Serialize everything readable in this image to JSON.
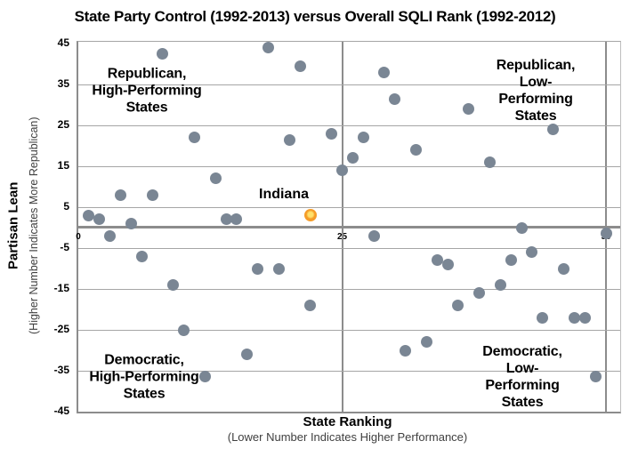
{
  "chart_data": {
    "type": "scatter",
    "title": "State Party Control (1992-2013) versus Overall SQLI Rank (1992-2012)",
    "xlabel": "State Ranking",
    "xlabel_sub": "(Lower Number Indicates Higher Performance)",
    "ylabel": "Partisan Lean",
    "ylabel_sub": "(Higher Number Indicates More Republican)",
    "xlim": [
      0,
      51
    ],
    "ylim": [
      -45,
      45
    ],
    "xticks": [
      0,
      25,
      50
    ],
    "yticks": [
      45,
      35,
      25,
      15,
      5,
      -5,
      -15,
      -25,
      -35,
      -45
    ],
    "grid": true,
    "legend_position": "none",
    "series": [
      {
        "name": "States",
        "color": "#7A8694",
        "points": [
          [
            8,
            42.5
          ],
          [
            18,
            44
          ],
          [
            21,
            39.5
          ],
          [
            11,
            22
          ],
          [
            20,
            21.5
          ],
          [
            24,
            23
          ],
          [
            25,
            14
          ],
          [
            13,
            12
          ],
          [
            4,
            8
          ],
          [
            7,
            8
          ],
          [
            1,
            3
          ],
          [
            2,
            2
          ],
          [
            5,
            1
          ],
          [
            14,
            2
          ],
          [
            15,
            2
          ],
          [
            3,
            -2
          ],
          [
            29,
            38
          ],
          [
            30,
            31.5
          ],
          [
            37,
            29
          ],
          [
            27,
            22
          ],
          [
            32,
            19
          ],
          [
            26,
            17
          ],
          [
            39,
            16
          ],
          [
            45,
            24
          ],
          [
            42,
            0
          ],
          [
            50,
            -1.5
          ],
          [
            28,
            -2
          ],
          [
            6,
            -7
          ],
          [
            9,
            -14
          ],
          [
            17,
            -10
          ],
          [
            19,
            -10
          ],
          [
            22,
            -19
          ],
          [
            10,
            -25
          ],
          [
            16,
            -31
          ],
          [
            12,
            -36.5
          ],
          [
            34,
            -8
          ],
          [
            35,
            -9
          ],
          [
            41,
            -8
          ],
          [
            43,
            -6
          ],
          [
            46,
            -10
          ],
          [
            40,
            -14
          ],
          [
            38,
            -16
          ],
          [
            36,
            -19
          ],
          [
            44,
            -22
          ],
          [
            47,
            -22
          ],
          [
            48,
            -22
          ],
          [
            33,
            -28
          ],
          [
            31,
            -30
          ],
          [
            49,
            -36.5
          ]
        ]
      }
    ],
    "highlight": {
      "label": "Indiana",
      "x": 22,
      "y": 3,
      "outer_color": "#F59C28",
      "inner_color": "#FFE06A"
    },
    "annotations": {
      "top_left": "Republican,\nHigh-Performing\nStates",
      "top_right": "Republican,\nLow-Performing\nStates",
      "bottom_left": "Democratic,\nHigh-Performing\nStates",
      "bottom_right": "Democratic,\nLow-Performing\nStates"
    },
    "colors": {
      "marker": "#7A8694",
      "gridline": "#A6A6A6",
      "axis_line": "#8C8C8C",
      "title_text": "#000000"
    }
  }
}
